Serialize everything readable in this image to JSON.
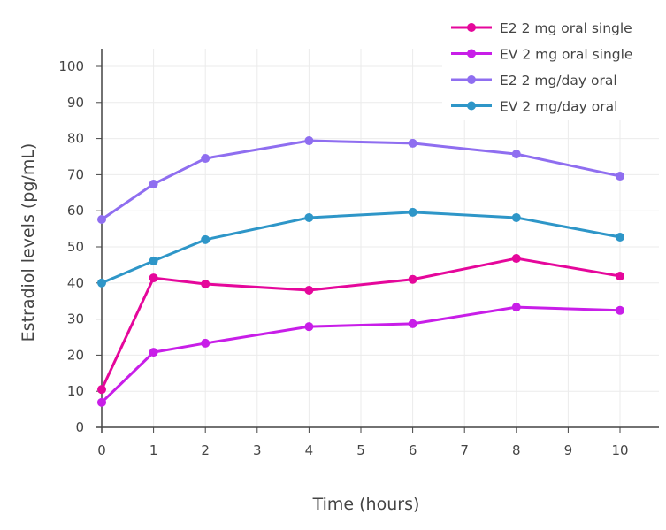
{
  "chart_data": {
    "type": "line",
    "title": "",
    "xlabel": "Time (hours)",
    "ylabel": "Estradiol levels (pg/mL)",
    "xlim": [
      0,
      10
    ],
    "ylim": [
      0,
      100
    ],
    "xticks": [
      0,
      1,
      2,
      3,
      4,
      5,
      6,
      7,
      8,
      9,
      10
    ],
    "yticks": [
      0,
      10,
      20,
      30,
      40,
      50,
      60,
      70,
      80,
      90,
      100
    ],
    "grid": true,
    "legend_position": "top-right",
    "series": [
      {
        "name": "E2 2 mg oral single",
        "color": "#e5079b",
        "x": [
          0,
          1,
          2,
          4,
          6,
          8,
          10
        ],
        "y": [
          10.5,
          41.4,
          39.7,
          38.0,
          41.0,
          46.8,
          41.9
        ]
      },
      {
        "name": "EV 2 mg oral single",
        "color": "#c81ee8",
        "x": [
          0,
          1,
          2,
          4,
          6,
          8,
          10
        ],
        "y": [
          6.9,
          20.8,
          23.3,
          27.9,
          28.7,
          33.3,
          32.4
        ]
      },
      {
        "name": "E2 2 mg/day oral",
        "color": "#8f6ef0",
        "x": [
          0,
          1,
          2,
          4,
          6,
          8,
          10
        ],
        "y": [
          57.6,
          67.4,
          74.5,
          79.4,
          78.7,
          75.7,
          69.6
        ]
      },
      {
        "name": "EV 2 mg/day oral",
        "color": "#2e96c8",
        "x": [
          0,
          1,
          2,
          4,
          6,
          8,
          10
        ],
        "y": [
          40.0,
          46.1,
          52.0,
          58.1,
          59.6,
          58.1,
          52.7
        ]
      }
    ]
  }
}
